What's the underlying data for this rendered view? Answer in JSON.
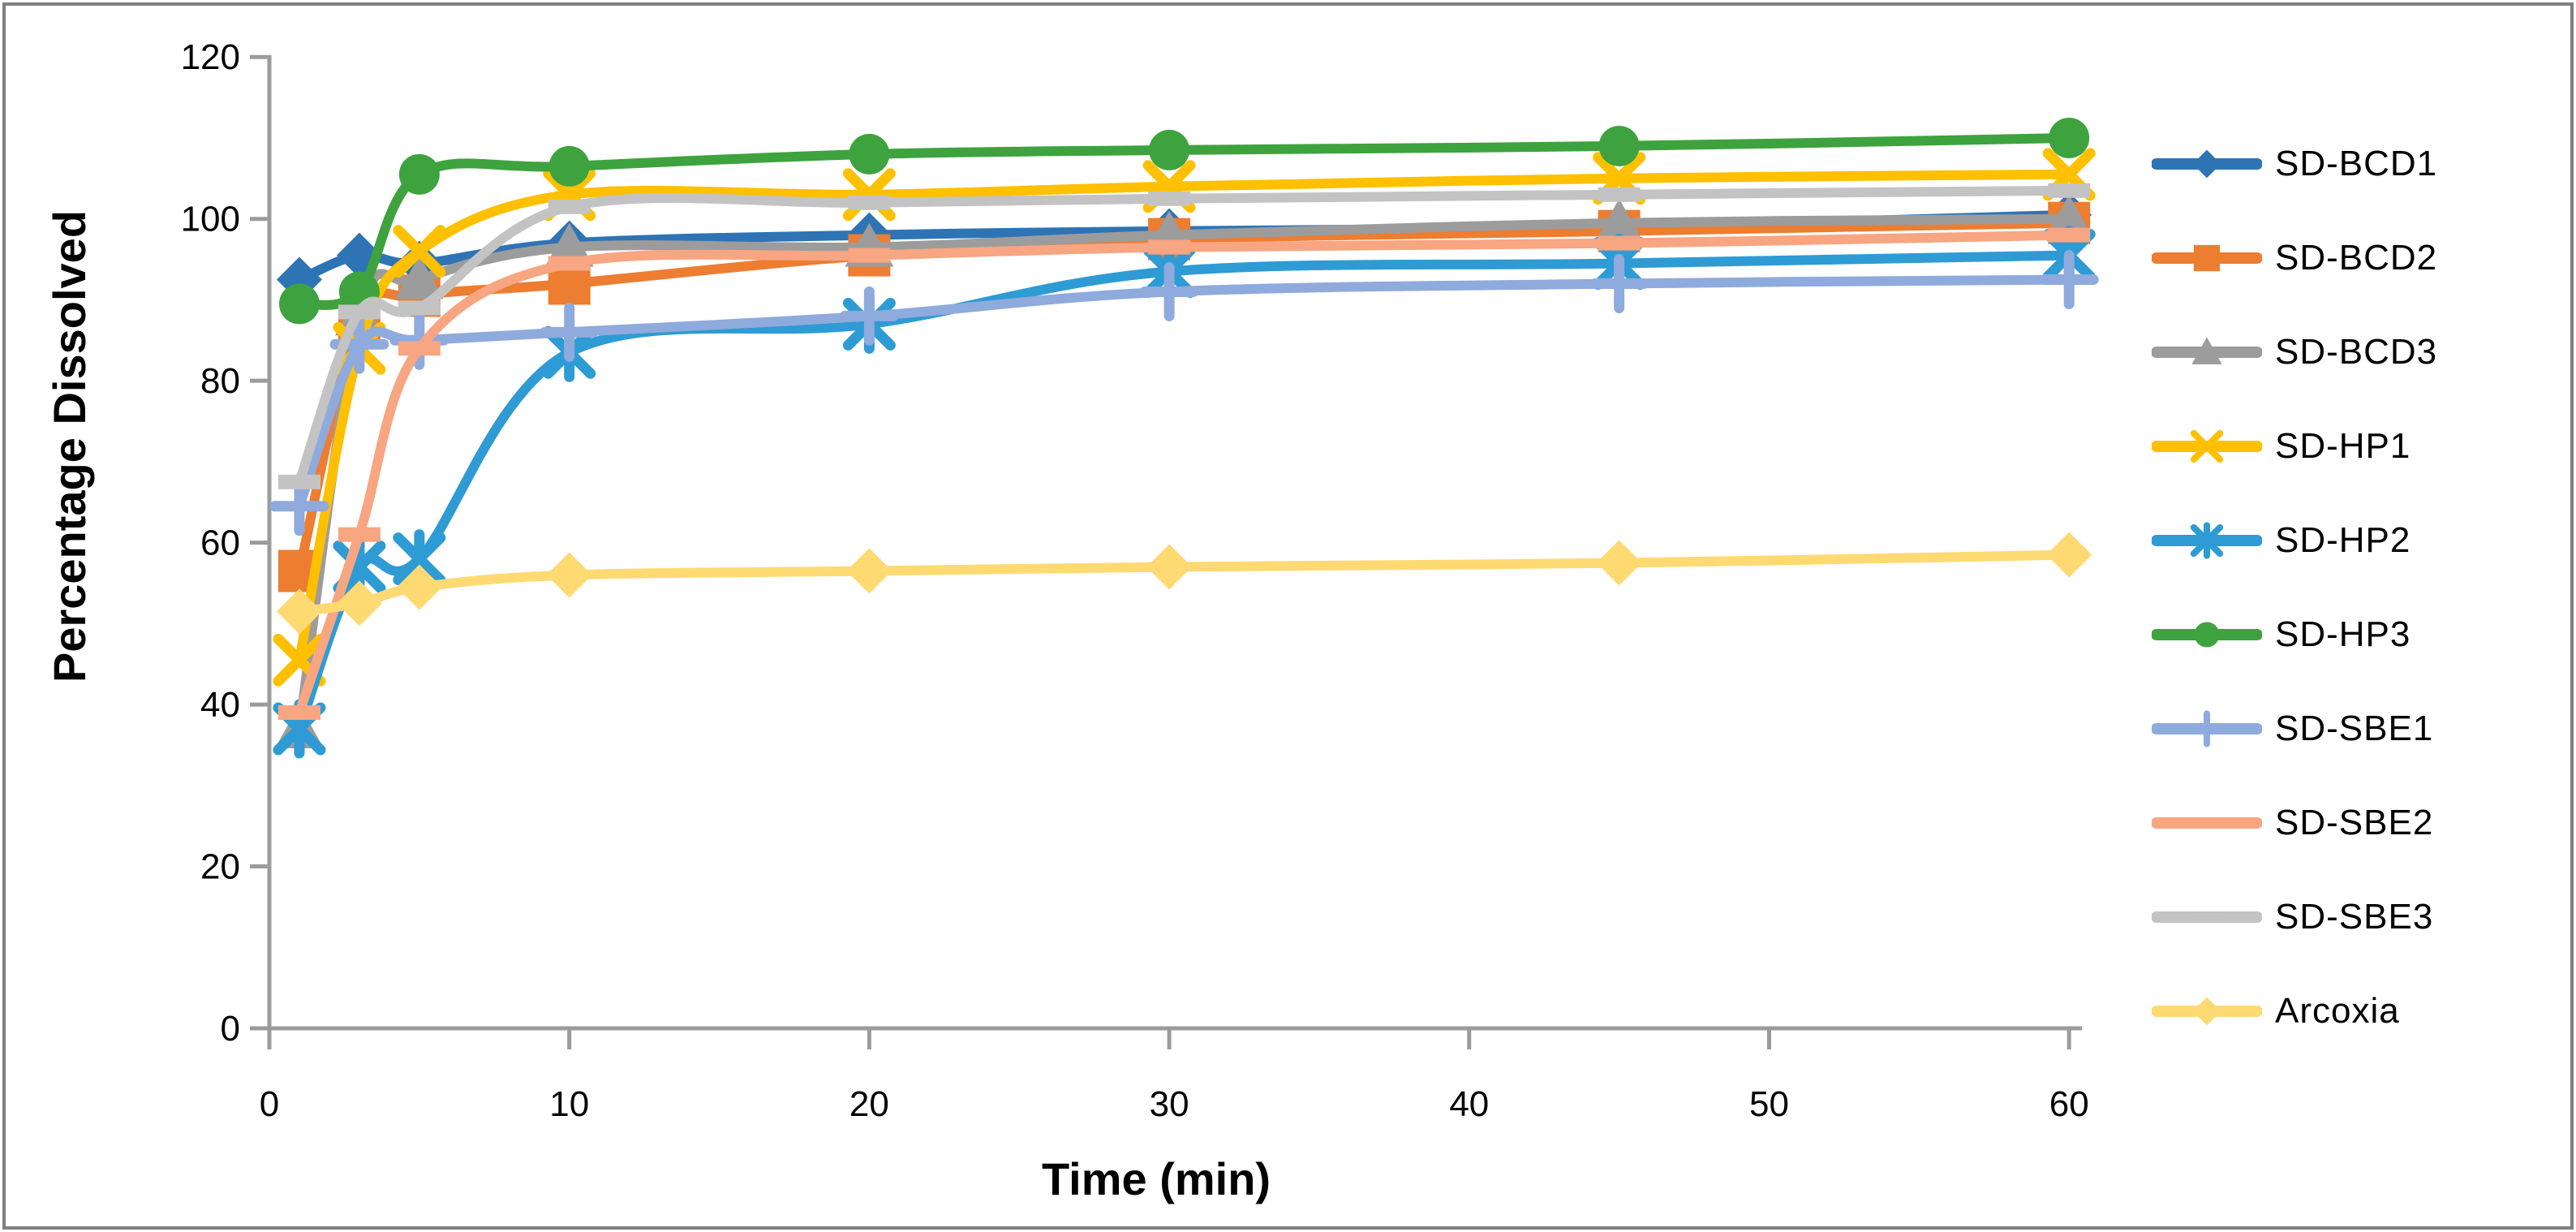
{
  "figure": {
    "background": "#FFFFFF",
    "border_color": "#7F7F7F",
    "axis_color": "#9B9B9B"
  },
  "chart_data": {
    "type": "line",
    "title": "",
    "xlabel": "Time (min)",
    "ylabel": "Percentage Dissolved",
    "x": [
      1,
      3,
      5,
      10,
      20,
      30,
      45,
      60
    ],
    "x_ticks": [
      0,
      10,
      20,
      30,
      40,
      50,
      60
    ],
    "y_ticks": [
      0,
      20,
      40,
      60,
      80,
      100,
      120
    ],
    "xlim": [
      0,
      60.5
    ],
    "ylim": [
      0,
      120
    ],
    "grid": false,
    "smooth": true,
    "legend_position": "right",
    "series": [
      {
        "name": "SD-BCD1",
        "color": "#2E74B5",
        "marker": "diamond",
        "values": [
          92.5,
          95.5,
          94.5,
          97,
          98,
          98.5,
          99,
          100.5
        ]
      },
      {
        "name": "SD-BCD2",
        "color": "#ED7D31",
        "marker": "square",
        "values": [
          56.5,
          87.5,
          90.5,
          92,
          95.5,
          97.5,
          98.5,
          99.5
        ]
      },
      {
        "name": "SD-BCD3",
        "color": "#9C9C9C",
        "marker": "triangle",
        "values": [
          37,
          88,
          92.5,
          96.5,
          96.5,
          98,
          99.5,
          100
        ]
      },
      {
        "name": "SD-HP1",
        "color": "#FFC000",
        "marker": "x",
        "values": [
          45.5,
          84,
          96,
          103,
          103,
          104,
          105,
          105.5
        ]
      },
      {
        "name": "SD-HP2",
        "color": "#2E9BD5",
        "marker": "asterisk",
        "values": [
          37,
          57,
          58,
          83.5,
          87,
          93.5,
          94.5,
          95.5
        ]
      },
      {
        "name": "SD-HP3",
        "color": "#3EA33E",
        "marker": "circle",
        "values": [
          89.5,
          91,
          105.5,
          106.5,
          108,
          108.5,
          109,
          110
        ]
      },
      {
        "name": "SD-SBE1",
        "color": "#8FAADC",
        "marker": "plus",
        "values": [
          64.5,
          84.5,
          85,
          86,
          88,
          91,
          92,
          92.5
        ]
      },
      {
        "name": "SD-SBE2",
        "color": "#F8A582",
        "marker": "dash",
        "values": [
          39,
          61,
          84,
          94.5,
          95.5,
          96.5,
          97,
          98
        ]
      },
      {
        "name": "SD-SBE3",
        "color": "#C3C3C3",
        "marker": "dash",
        "values": [
          67.5,
          88.5,
          89,
          101.5,
          102,
          102.5,
          103,
          103.5
        ]
      },
      {
        "name": "Arcoxia",
        "color": "#FFD972",
        "marker": "diamond",
        "values": [
          51.5,
          52.5,
          54.5,
          56,
          56.5,
          57,
          57.5,
          58.5
        ]
      }
    ]
  }
}
